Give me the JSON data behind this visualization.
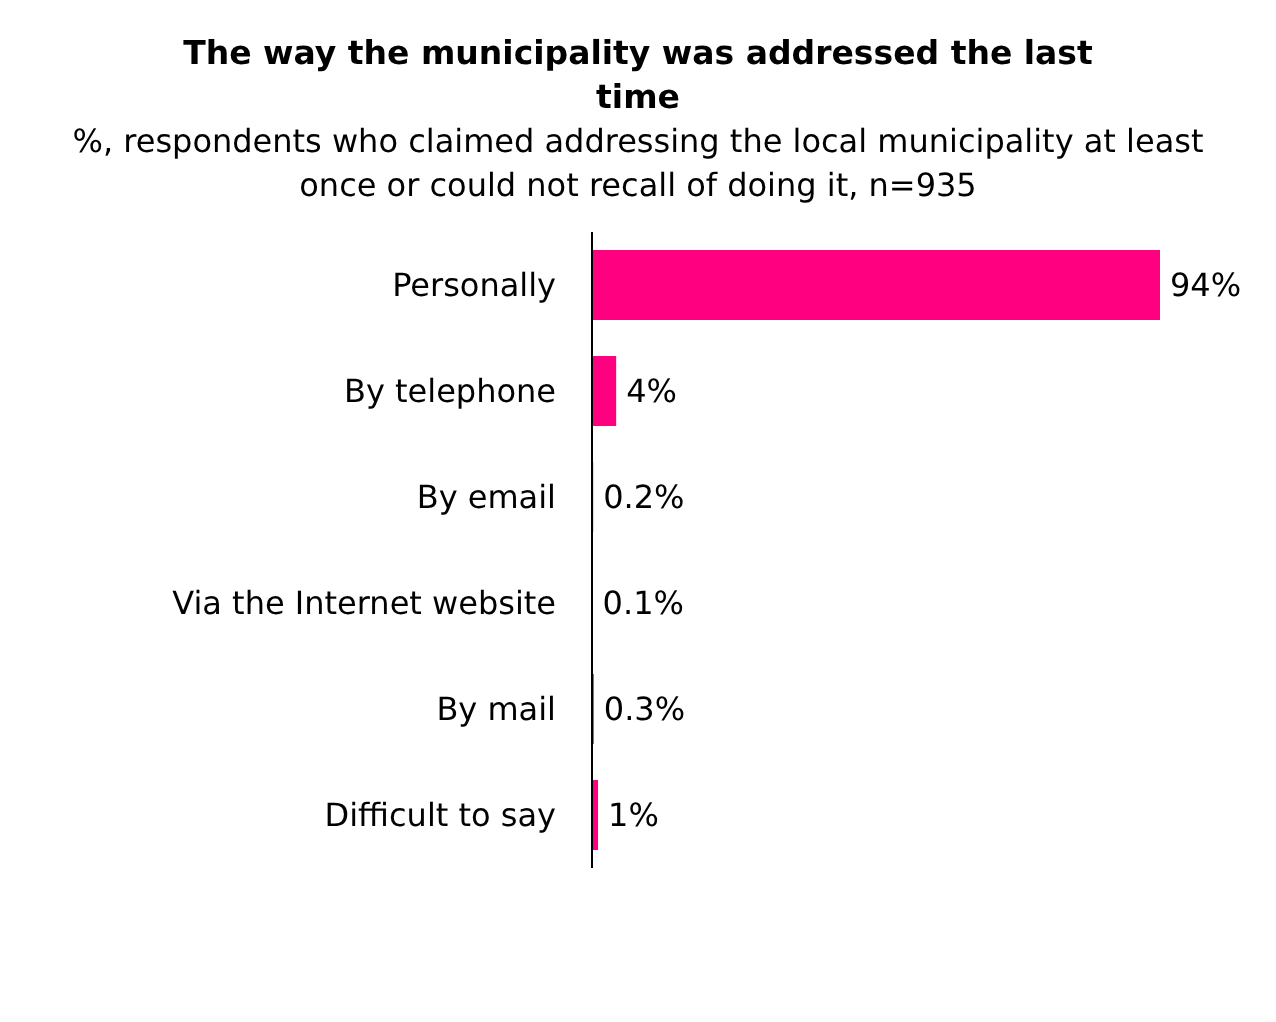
{
  "chart_data": {
    "type": "bar",
    "orientation": "horizontal",
    "title": "The way the municipality was addressed the last time",
    "subtitle": "%, respondents who claimed addressing the local municipality at least once or could not recall of doing it, n=935",
    "categories": [
      "Personally",
      "By telephone",
      "By email",
      "Via the Internet website",
      "By mail",
      "Difficult to say"
    ],
    "values": [
      94,
      4,
      0.2,
      0.1,
      0.3,
      1
    ],
    "value_labels": [
      "94%",
      "4%",
      "0.2%",
      "0.1%",
      "0.3%",
      "1%"
    ],
    "color": "#ff0080"
  }
}
